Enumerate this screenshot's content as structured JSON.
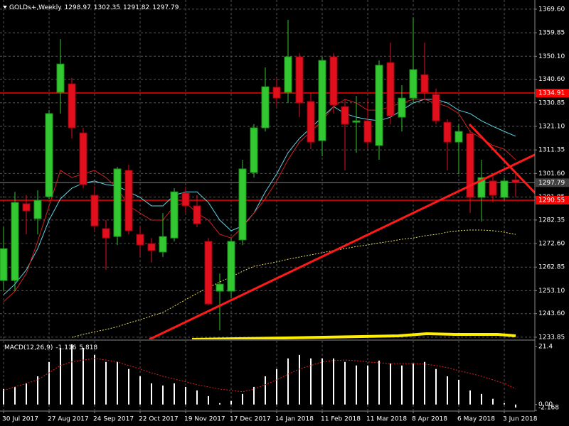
{
  "chart_data": [
    {
      "type": "candlestick",
      "title": "GOLDs+,Weekly",
      "categories": [
        "30 Jul 2017",
        null,
        null,
        null,
        "27 Aug 2017",
        null,
        null,
        null,
        "24 Sep 2017",
        null,
        null,
        null,
        "22 Oct 2017",
        null,
        null,
        null,
        "19 Nov 2017",
        null,
        null,
        null,
        "17 Dec 2017",
        null,
        null,
        null,
        "14 Jan 2018",
        null,
        null,
        null,
        "11 Feb 2018",
        null,
        null,
        null,
        "11 Mar 2018",
        null,
        null,
        null,
        "8 Apr 2018",
        null,
        null,
        null,
        "6 May 2018",
        null,
        null,
        null,
        "3 Jun 2018",
        null
      ],
      "open": [
        1257.3,
        1257.3,
        1289.1,
        1282.9,
        1292.0,
        1335.2,
        1338.7,
        1318.4,
        1292.6,
        1278.8,
        1275.5,
        1302.9,
        1276.4,
        1272.6,
        1269.1,
        1274.9,
        1293.5,
        1288.2,
        1273.5,
        1252.9,
        1252.9,
        1274.1,
        1302.0,
        1320.5,
        1337.3,
        1335.2,
        1349.9,
        1331.4,
        1315.2,
        1349.9,
        1329.3,
        1322.8,
        1323.4,
        1313.2,
        1347.5,
        1324.9,
        1332.8,
        1342.5,
        1334.3,
        1322.8,
        1314.6,
        1318.1,
        1291.7,
        1298.5,
        1291.7,
        1298.97
      ],
      "high": [
        1279.4,
        1294.0,
        1292.6,
        1294.6,
        1327.8,
        1357.2,
        1341.1,
        1320.5,
        1296.4,
        1282.3,
        1304.3,
        1305.2,
        1279.4,
        1274.9,
        1285.2,
        1295.5,
        1296.1,
        1292.6,
        1274.9,
        1260.2,
        1274.9,
        1307.3,
        1322.0,
        1345.5,
        1341.1,
        1365.2,
        1351.4,
        1335.2,
        1349.9,
        1351.4,
        1332.3,
        1333.7,
        1332.3,
        1348.4,
        1355.8,
        1338.1,
        1366.1,
        1355.8,
        1336.7,
        1324.0,
        1322.0,
        1319.6,
        1307.3,
        1301.4,
        1299.9,
        1302.35
      ],
      "low": [
        1252.9,
        1252.9,
        1276.4,
        1276.4,
        1291.1,
        1326.4,
        1316.1,
        1295.5,
        1277.9,
        1261.7,
        1272.0,
        1276.4,
        1267.6,
        1264.7,
        1267.0,
        1273.5,
        1285.2,
        1279.4,
        1247.0,
        1236.7,
        1250.0,
        1272.0,
        1299.9,
        1319.0,
        1329.3,
        1330.8,
        1324.9,
        1311.7,
        1308.7,
        1326.4,
        1302.9,
        1310.2,
        1311.7,
        1307.3,
        1322.0,
        1319.0,
        1330.8,
        1332.3,
        1322.0,
        1302.9,
        1301.4,
        1285.2,
        1281.7,
        1289.6,
        1290.5,
        1291.82
      ],
      "close": [
        1270.5,
        1289.6,
        1286.1,
        1290.5,
        1326.4,
        1346.9,
        1320.5,
        1297.0,
        1279.9,
        1274.9,
        1303.5,
        1277.9,
        1272.0,
        1269.7,
        1275.5,
        1294.0,
        1288.2,
        1280.8,
        1247.6,
        1255.8,
        1273.5,
        1303.5,
        1320.5,
        1337.5,
        1332.8,
        1349.9,
        1330.8,
        1314.6,
        1348.4,
        1329.9,
        1322.0,
        1323.4,
        1314.6,
        1346.4,
        1325.5,
        1332.8,
        1344.6,
        1335.2,
        1323.4,
        1314.6,
        1319.0,
        1291.7,
        1299.9,
        1292.6,
        1298.5,
        1297.79
      ],
      "colors": {
        "up": "#32c832",
        "down": "#e0101c"
      },
      "lines": [
        {
          "color": "#5fd3e6",
          "dash": false,
          "values": [
            1251.4,
            1255.8,
            1261.7,
            1270.5,
            1282.3,
            1291.1,
            1295.5,
            1297.6,
            1298.5,
            1297.0,
            1296.4,
            1294.0,
            1291.7,
            1288.2,
            1288.2,
            1292.6,
            1294.0,
            1294.0,
            1289.6,
            1282.3,
            1277.9,
            1279.9,
            1285.2,
            1294.0,
            1301.4,
            1310.2,
            1316.1,
            1320.5,
            1324.9,
            1329.3,
            1326.4,
            1324.9,
            1324.0,
            1323.4,
            1324.9,
            1327.8,
            1330.8,
            1332.3,
            1332.3,
            1330.8,
            1327.8,
            1326.4,
            1323.4,
            1321.1,
            1319.0,
            1317.0
          ]
        },
        {
          "color": "#d02020",
          "dash": false,
          "values": [
            1248.5,
            1252.9,
            1260.2,
            1273.5,
            1288.2,
            1302.9,
            1299.9,
            1301.4,
            1302.9,
            1299.9,
            1295.5,
            1288.2,
            1285.2,
            1282.3,
            1282.3,
            1288.2,
            1289.6,
            1285.2,
            1282.3,
            1276.4,
            1274.9,
            1279.4,
            1285.2,
            1291.1,
            1298.5,
            1307.3,
            1314.6,
            1319.0,
            1323.4,
            1329.3,
            1332.3,
            1330.8,
            1327.8,
            1327.8,
            1329.3,
            1330.8,
            1332.3,
            1332.3,
            1330.8,
            1329.3,
            1326.4,
            1319.0,
            1316.1,
            1313.2,
            1311.7,
            1307.3
          ]
        },
        {
          "color": "#e8e060",
          "dash": true,
          "values": [
            null,
            null,
            null,
            null,
            null,
            null,
            1233.8,
            1235.0,
            1236.1,
            1237.0,
            1238.2,
            1239.7,
            1241.1,
            1242.6,
            1244.1,
            1246.7,
            1249.4,
            1252.0,
            1254.4,
            1256.7,
            1258.8,
            1261.1,
            1263.2,
            1264.1,
            1265.0,
            1266.1,
            1267.0,
            1267.9,
            1268.8,
            1269.7,
            1270.5,
            1271.4,
            1272.0,
            1272.9,
            1273.5,
            1274.4,
            1274.9,
            1275.8,
            1276.4,
            1277.3,
            1277.9,
            1278.2,
            1278.2,
            1277.9,
            1277.3,
            1276.4
          ]
        }
      ],
      "levels": [
        {
          "value": 1334.91,
          "color": "#ff0000",
          "box": "#ff0000"
        },
        {
          "value": 1290.55,
          "color": "#ff0000",
          "box": "#ff0000"
        },
        {
          "value": 1297.79,
          "color": "#808080",
          "box": "#404040"
        }
      ],
      "ylim": [
        1232.94,
        1373.4
      ],
      "yticks": [
        {
          "value": 1369.6,
          "label": "1369.60"
        },
        {
          "value": 1359.85,
          "label": "1359.85"
        },
        {
          "value": 1350.1,
          "label": "1350.10"
        },
        {
          "value": 1340.6,
          "label": "1340.60"
        },
        {
          "value": 1330.85,
          "label": "1330.85"
        },
        {
          "value": 1321.1,
          "label": "1321.10"
        },
        {
          "value": 1311.35,
          "label": "1311.35"
        },
        {
          "value": 1301.6,
          "label": "1301.60"
        },
        {
          "value": 1291.85,
          "label": "1291.85"
        },
        {
          "value": 1282.35,
          "label": "1282.35"
        },
        {
          "value": 1272.6,
          "label": "1272.60"
        },
        {
          "value": 1262.85,
          "label": "1262.85"
        },
        {
          "value": 1253.1,
          "label": "1253.10"
        },
        {
          "value": 1243.6,
          "label": "1243.60"
        },
        {
          "value": 1233.85,
          "label": "1233.85"
        }
      ],
      "grid": true
    },
    {
      "type": "bar",
      "title": "MACD(12,26,9)",
      "values": [
        5.7,
        6.5,
        7.8,
        10.4,
        15.7,
        20.9,
        22.2,
        20.9,
        18.3,
        15.7,
        15.7,
        13.1,
        10.4,
        7.8,
        7.0,
        7.8,
        6.5,
        5.2,
        3.1,
        0.5,
        1.3,
        3.9,
        6.5,
        10.4,
        13.1,
        17.0,
        18.3,
        17.0,
        17.0,
        17.0,
        15.7,
        14.4,
        14.4,
        16.2,
        15.1,
        14.4,
        15.1,
        15.7,
        13.1,
        10.4,
        9.1,
        5.2,
        3.9,
        2.1,
        0.5,
        -1.116
      ],
      "color": "#ffffff",
      "signal": {
        "color": "#e02020",
        "values": [
          5.2,
          6.5,
          7.8,
          9.1,
          11.7,
          14.4,
          15.7,
          16.4,
          17.0,
          16.4,
          15.7,
          14.4,
          13.1,
          11.7,
          10.4,
          9.4,
          8.4,
          7.3,
          6.5,
          5.7,
          5.2,
          4.7,
          5.7,
          7.3,
          9.1,
          11.2,
          13.1,
          14.4,
          15.7,
          16.2,
          16.4,
          16.2,
          15.7,
          15.4,
          15.1,
          15.1,
          15.1,
          14.9,
          14.4,
          13.6,
          12.5,
          11.5,
          10.4,
          9.1,
          7.8,
          5.818
        ]
      },
      "ylim": [
        -2.168,
        23.5
      ],
      "yticks": [
        21.4,
        {
          "value": 0,
          "label": "0.00"
        },
        -2.168
      ]
    }
  ]
}
